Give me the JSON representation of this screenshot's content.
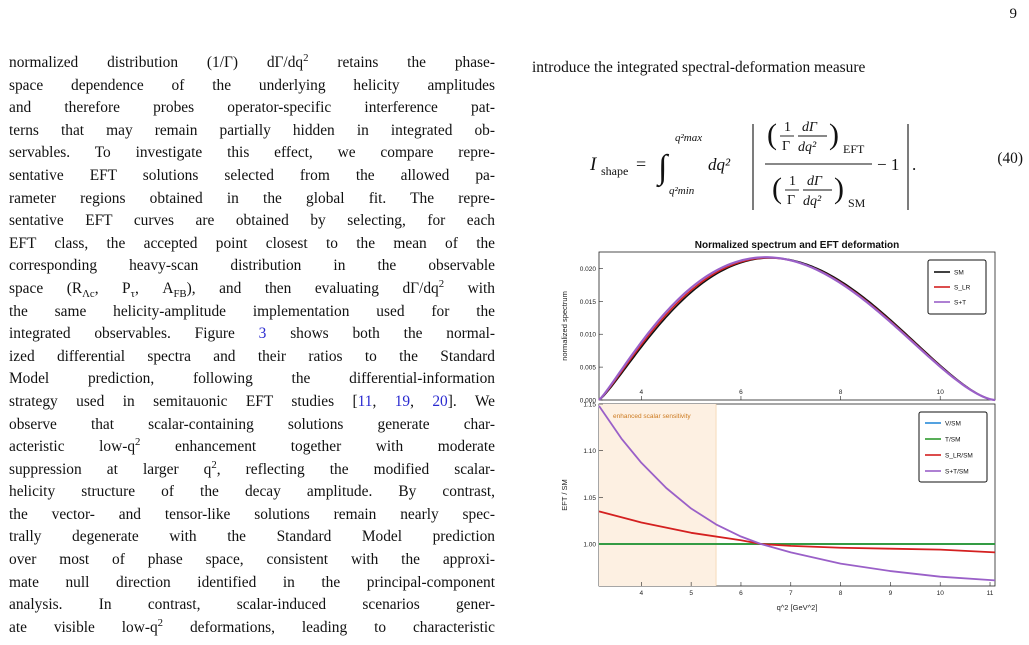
{
  "page": {
    "number": "9"
  },
  "left_text": {
    "lines": [
      [
        "normalized distribution (1/Γ) dΓ/dq",
        "2",
        " retains the phase-"
      ],
      [
        "space dependence of the underlying helicity amplitudes"
      ],
      [
        "and therefore probes operator-specific interference pat-"
      ],
      [
        "terns that may remain partially hidden in integrated ob-"
      ],
      [
        "servables. To investigate this effect, we compare repre-"
      ],
      [
        "sentative EFT solutions selected from the allowed pa-"
      ],
      [
        "rameter regions obtained in the global fit. The repre-"
      ],
      [
        "sentative EFT curves are obtained by selecting, for each"
      ],
      [
        "EFT class, the accepted point closest to the mean of the"
      ],
      [
        "corresponding heavy-scan distribution in the observable"
      ],
      [
        "space (R",
        "Λc",
        ", P",
        "τ",
        ", A",
        "FB",
        "), and then evaluating dΓ/dq",
        "2",
        " with"
      ],
      [
        "the same helicity-amplitude implementation used for the"
      ],
      [
        "integrated observables. Figure ",
        "3",
        " shows both the normal-"
      ],
      [
        "ized differential spectra and their ratios to the Standard"
      ],
      [
        "Model prediction, following the differential-information"
      ],
      [
        "strategy used in semitauonic EFT studies [",
        "11",
        ", ",
        "19",
        ", ",
        "20",
        "]. We"
      ],
      [
        "observe that scalar-containing solutions generate char-"
      ],
      [
        "acteristic low-q",
        "2",
        " enhancement together with moderate"
      ],
      [
        "suppression at larger q",
        "2",
        ", reflecting the modified scalar-"
      ],
      [
        "helicity structure of the decay amplitude. By contrast,"
      ],
      [
        "the vector- and tensor-like solutions remain nearly spec-"
      ],
      [
        "trally degenerate with the Standard Model prediction"
      ],
      [
        "over most of phase space, consistent with the approxi-"
      ],
      [
        "mate null direction identified in the principal-component"
      ],
      [
        "analysis.  In contrast, scalar-induced scenarios gener-"
      ],
      [
        "ate visible low-q",
        "2",
        " deformations, leading to characteristic"
      ]
    ]
  },
  "right_text": {
    "intro": "introduce the integrated spectral-deformation measure",
    "equation": {
      "lhs": "I",
      "lhs_sub": "shape",
      "upper_limit": "q²max",
      "lower_limit": "q²min",
      "measure": "dq²",
      "num_sub": "EFT",
      "den_sub": "SM",
      "minus_one": "− 1",
      "number": "(40)"
    }
  },
  "chart_data": [
    {
      "type": "line",
      "title": "Normalized spectrum and EFT deformation",
      "ylabel": "normalized spectrum",
      "xlabel": "",
      "xlim": [
        3.15,
        11.1
      ],
      "ylim": [
        0,
        0.0225
      ],
      "xticks": [
        4,
        6,
        8,
        10
      ],
      "yticks": [
        "0.000",
        "0.005",
        "0.010",
        "0.015",
        "0.020"
      ],
      "legend_position": "top-right",
      "series": [
        {
          "name": "SM",
          "color": "#111111",
          "peak_x": 6.6,
          "peak_y": 0.0216
        },
        {
          "name": "S_LR",
          "color": "#d42020",
          "peak_x": 6.55,
          "peak_y": 0.0216
        },
        {
          "name": "S+T",
          "color": "#9a60c8",
          "peak_x": 6.5,
          "peak_y": 0.0217
        }
      ]
    },
    {
      "type": "line",
      "title": "",
      "ylabel": "EFT / SM",
      "xlabel": "q^2  [GeV^2]",
      "xlim": [
        3.15,
        11.1
      ],
      "ylim": [
        0.955,
        1.15
      ],
      "xticks": [
        4,
        5,
        6,
        7,
        8,
        9,
        10,
        11
      ],
      "yticks": [
        "1.00",
        "1.05",
        "1.10",
        "1.15"
      ],
      "legend_position": "top-right",
      "band": {
        "label": "enhanced scalar sensitivity",
        "x_from": 3.15,
        "x_to": 5.5,
        "color": "#fdf0e2",
        "label_color": "#cc7a20"
      },
      "series": [
        {
          "name": "V/SM",
          "color": "#2a8ad8",
          "x": [
            3.15,
            11.1
          ],
          "y": [
            1.0,
            1.0
          ]
        },
        {
          "name": "T/SM",
          "color": "#2e9a2e",
          "x": [
            3.15,
            11.1
          ],
          "y": [
            1.0,
            1.0
          ]
        },
        {
          "name": "S_LR/SM",
          "color": "#d42020",
          "x": [
            3.15,
            4,
            5,
            6,
            6.4,
            7,
            8,
            9,
            10,
            11.1
          ],
          "y": [
            1.035,
            1.023,
            1.012,
            1.004,
            1.0,
            0.998,
            0.996,
            0.995,
            0.994,
            0.991
          ]
        },
        {
          "name": "S+T/SM",
          "color": "#9a60c8",
          "x": [
            3.15,
            3.6,
            4,
            4.5,
            5,
            5.5,
            6,
            6.4,
            7,
            8,
            9,
            10,
            11.1
          ],
          "y": [
            1.148,
            1.113,
            1.087,
            1.06,
            1.038,
            1.021,
            1.008,
            1.0,
            0.991,
            0.979,
            0.971,
            0.965,
            0.961
          ]
        }
      ]
    }
  ]
}
